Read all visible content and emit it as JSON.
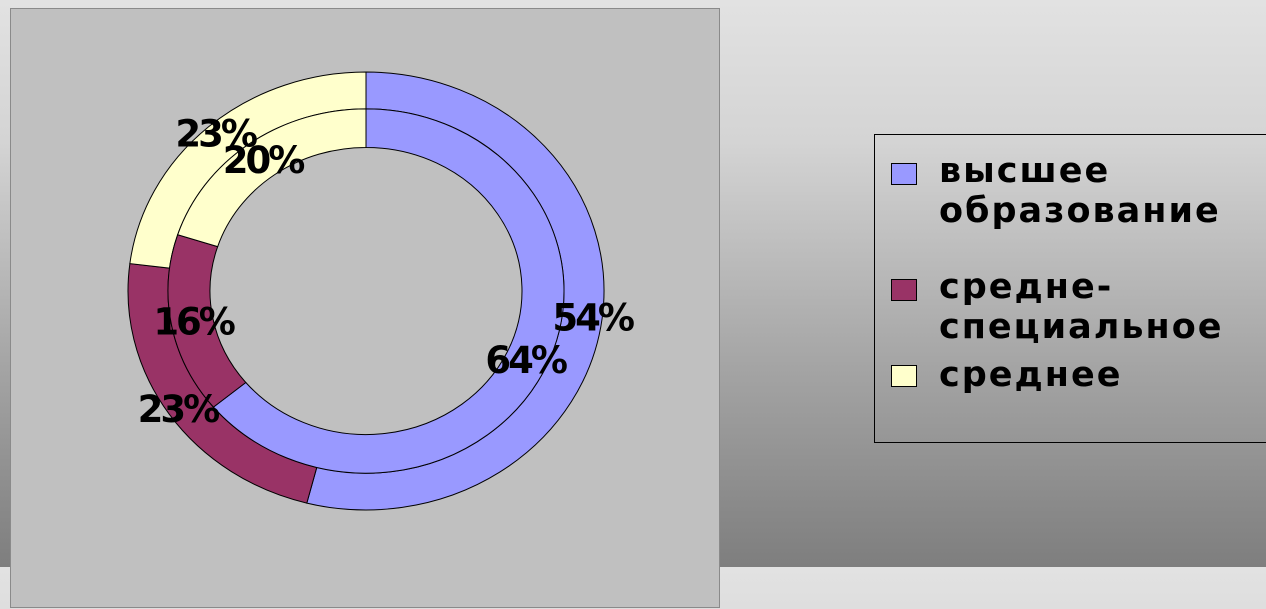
{
  "chart_data": {
    "type": "doughnut",
    "categories": [
      "высшее образование",
      "средне-специальное",
      "среднее"
    ],
    "series": [
      {
        "values": [
          54,
          23,
          23
        ]
      },
      {
        "values": [
          64,
          16,
          20
        ]
      }
    ],
    "data_labels": [
      [
        "54%",
        "23%",
        "23%"
      ],
      [
        "64%",
        "16%",
        "20%"
      ]
    ],
    "colors": [
      "#9999ff",
      "#993366",
      "#ffffcc"
    ],
    "legend": {
      "placement": "right",
      "items": [
        {
          "label": "высшее\nобразование",
          "color": "#9999ff"
        },
        {
          "label": "средне-\nспециальное",
          "color": "#993366"
        },
        {
          "label": "среднее",
          "color": "#ffffcc"
        }
      ]
    }
  }
}
